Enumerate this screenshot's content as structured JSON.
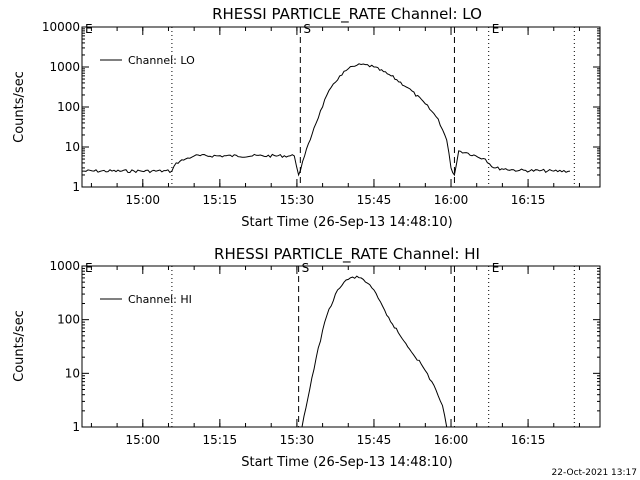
{
  "footer": {
    "timestamp": "22-Oct-2021 13:17"
  },
  "chart_data": [
    {
      "type": "line",
      "title": "RHESSI PARTICLE_RATE Channel: LO",
      "xlabel": "Start Time (26-Sep-13 14:48:10)",
      "ylabel": "Counts/sec",
      "yscale": "log",
      "xlim": [
        "14:48:10",
        "16:29:00"
      ],
      "ylim": [
        1,
        10000
      ],
      "x_ticks": [
        "15:00",
        "15:15",
        "15:30",
        "15:45",
        "16:00",
        "16:15"
      ],
      "y_ticks": [
        "1",
        "10",
        "100",
        "1000",
        "10000"
      ],
      "legend": {
        "placement": "top-left",
        "entry": "Channel: LO"
      },
      "markers": [
        {
          "time": "14:48:10",
          "style": "dotted",
          "label": "E"
        },
        {
          "time": "15:05:40",
          "style": "dotted",
          "label": ""
        },
        {
          "time": "15:30:40",
          "style": "dashed",
          "label": "S"
        },
        {
          "time": "16:00:40",
          "style": "dashed",
          "label": ""
        },
        {
          "time": "16:07:20",
          "style": "dotted",
          "label": "E"
        },
        {
          "time": "16:24:00",
          "style": "dotted",
          "label": ""
        }
      ],
      "series": [
        {
          "name": "Channel: LO",
          "x": [
            "14:48:10",
            "15:05:40",
            "15:06:30",
            "15:08:20",
            "15:10:00",
            "15:29:30",
            "15:30:20",
            "15:31:30",
            "15:33:20",
            "15:35:50",
            "15:38:20",
            "15:40:00",
            "15:41:40",
            "15:43:20",
            "15:45:00",
            "15:48:20",
            "15:51:40",
            "15:55:00",
            "15:57:30",
            "15:59:10",
            "16:00:00",
            "16:00:40",
            "16:01:30",
            "16:03:20",
            "16:06:40",
            "16:08:20",
            "16:13:20",
            "16:20:00",
            "16:23:10"
          ],
          "y": [
            2.5,
            2.5,
            4,
            5,
            6,
            6,
            2,
            6,
            30,
            200,
            600,
            900,
            1100,
            1150,
            1000,
            600,
            300,
            120,
            50,
            15,
            3,
            2,
            8,
            7,
            5,
            3,
            2.6,
            2.5,
            2.5
          ]
        }
      ]
    },
    {
      "type": "line",
      "title": "RHESSI PARTICLE_RATE Channel: HI",
      "xlabel": "Start Time (26-Sep-13 14:48:10)",
      "ylabel": "Counts/sec",
      "yscale": "log",
      "xlim": [
        "14:48:10",
        "16:29:00"
      ],
      "ylim": [
        1,
        1000
      ],
      "x_ticks": [
        "15:00",
        "15:15",
        "15:30",
        "15:45",
        "16:00",
        "16:15"
      ],
      "y_ticks": [
        "1",
        "10",
        "100",
        "1000"
      ],
      "legend": {
        "placement": "top-left",
        "entry": "Channel: HI"
      },
      "markers": [
        {
          "time": "14:48:10",
          "style": "dotted",
          "label": "E"
        },
        {
          "time": "15:05:40",
          "style": "dotted",
          "label": ""
        },
        {
          "time": "15:30:20",
          "style": "dashed",
          "label": "S"
        },
        {
          "time": "16:00:40",
          "style": "dashed",
          "label": ""
        },
        {
          "time": "16:07:20",
          "style": "dotted",
          "label": "E"
        },
        {
          "time": "16:24:00",
          "style": "dotted",
          "label": ""
        }
      ],
      "series": [
        {
          "name": "Channel: HI",
          "x": [
            "15:31:00",
            "15:32:30",
            "15:34:10",
            "15:35:50",
            "15:37:30",
            "15:39:10",
            "15:40:50",
            "15:42:30",
            "15:44:10",
            "15:45:50",
            "15:47:30",
            "15:50:50",
            "15:54:10",
            "15:56:40",
            "15:58:20",
            "15:59:10"
          ],
          "y": [
            1,
            5,
            30,
            120,
            300,
            500,
            620,
            600,
            450,
            250,
            120,
            40,
            15,
            6,
            2.5,
            1
          ]
        }
      ]
    }
  ]
}
